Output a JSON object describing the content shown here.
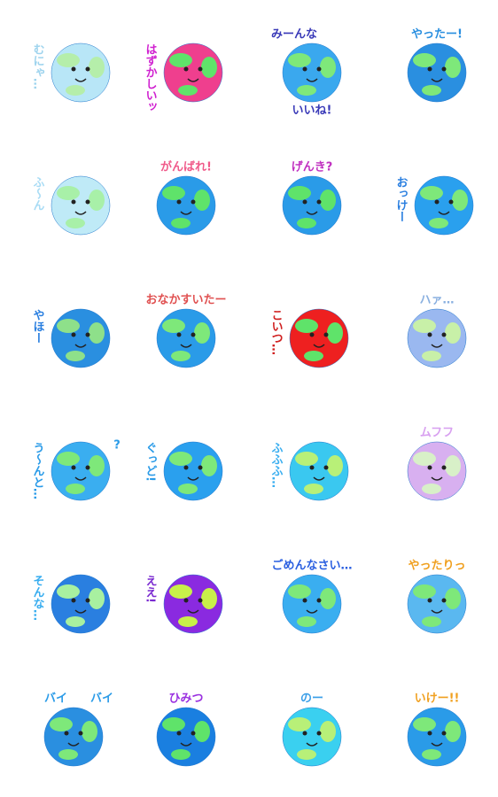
{
  "stickers": [
    {
      "texts": [
        "むにゃ…"
      ],
      "vertical": true,
      "ocean": "#b8e6f7",
      "land": "#b5eeaa",
      "text_color": "#9fd4ee"
    },
    {
      "texts": [
        "はずかしいッ"
      ],
      "vertical": true,
      "ocean": "#ef3f8e",
      "land": "#5fe36a",
      "text_color": "#d020d0"
    },
    {
      "texts": [
        "みーんな",
        "いいね!"
      ],
      "vertical": false,
      "ocean": "#3aa8ee",
      "land": "#7ee87a",
      "text_color": "#3a3ab8"
    },
    {
      "texts": [
        "やったー!"
      ],
      "vertical": false,
      "ocean": "#2a8fe0",
      "land": "#7ee87a",
      "text_color": "#2a8fe0"
    },
    {
      "texts": [
        "ふ〜ん"
      ],
      "vertical": true,
      "ocean": "#bfeaf7",
      "land": "#a8f0a8",
      "text_color": "#a9dcf5"
    },
    {
      "texts": [
        "がんばれ!"
      ],
      "vertical": false,
      "ocean": "#2a9be8",
      "land": "#5fe36a",
      "text_color": "#f05a8a"
    },
    {
      "texts": [
        "げんき?"
      ],
      "vertical": false,
      "ocean": "#2a9be8",
      "land": "#5fe36a",
      "text_color": "#c030c0"
    },
    {
      "texts": [
        "おっけー"
      ],
      "vertical": true,
      "ocean": "#2aa0ee",
      "land": "#7ee87a",
      "text_color": "#2a7fe0"
    },
    {
      "texts": [
        "やほー"
      ],
      "vertical": true,
      "ocean": "#2a8fe0",
      "land": "#8ee08a",
      "text_color": "#2a7fe0"
    },
    {
      "texts": [
        "おなかすいたー"
      ],
      "vertical": false,
      "ocean": "#2a9be8",
      "land": "#7ee87a",
      "text_color": "#e05050"
    },
    {
      "texts": [
        "こいつ…"
      ],
      "vertical": true,
      "ocean": "#ee2020",
      "land": "#5fe36a",
      "text_color": "#d02020"
    },
    {
      "texts": [
        "ハァ…"
      ],
      "vertical": false,
      "ocean": "#9ab8f0",
      "land": "#c8f0a8",
      "text_color": "#8ab0e0"
    },
    {
      "texts": [
        "う〜んと…",
        "?"
      ],
      "vertical": true,
      "ocean": "#3aaef0",
      "land": "#7ee87a",
      "text_color": "#2a9be8"
    },
    {
      "texts": [
        "ぐっど!"
      ],
      "vertical": true,
      "ocean": "#2aa0ee",
      "land": "#7ee87a",
      "text_color": "#2a9be8"
    },
    {
      "texts": [
        "ふふふ…"
      ],
      "vertical": true,
      "ocean": "#3ac8f0",
      "land": "#b8f078",
      "text_color": "#3aaef0"
    },
    {
      "texts": [
        "ムフフ"
      ],
      "vertical": false,
      "ocean": "#d8b0f0",
      "land": "#d8f0c8",
      "text_color": "#d8a0f0"
    },
    {
      "texts": [
        "そんな…"
      ],
      "vertical": true,
      "ocean": "#2a7fe0",
      "land": "#a8f0a0",
      "text_color": "#3aaef0"
    },
    {
      "texts": [
        "ええ!"
      ],
      "vertical": true,
      "ocean": "#8a2ae0",
      "land": "#c8f04a",
      "text_color": "#7a2ad0"
    },
    {
      "texts": [
        "ごめんなさい…"
      ],
      "vertical": false,
      "ocean": "#3aaef0",
      "land": "#7ee87a",
      "text_color": "#2a5fe0"
    },
    {
      "texts": [
        "やったりっ"
      ],
      "vertical": false,
      "ocean": "#5ab8f0",
      "land": "#7ee87a",
      "text_color": "#f0a020"
    },
    {
      "texts": [
        "バイ",
        "バイ"
      ],
      "vertical": false,
      "ocean": "#2a8fe0",
      "land": "#7ee87a",
      "text_color": "#2a9be8"
    },
    {
      "texts": [
        "ひみつ"
      ],
      "vertical": false,
      "ocean": "#1a7fe0",
      "land": "#5fe36a",
      "text_color": "#9a30e0"
    },
    {
      "texts": [
        "のー"
      ],
      "vertical": false,
      "ocean": "#3ad0f0",
      "land": "#b8f078",
      "text_color": "#3a9ee8"
    },
    {
      "texts": [
        "いけー!!"
      ],
      "vertical": false,
      "ocean": "#2a9be8",
      "land": "#7ee87a",
      "text_color": "#f0a020"
    }
  ]
}
